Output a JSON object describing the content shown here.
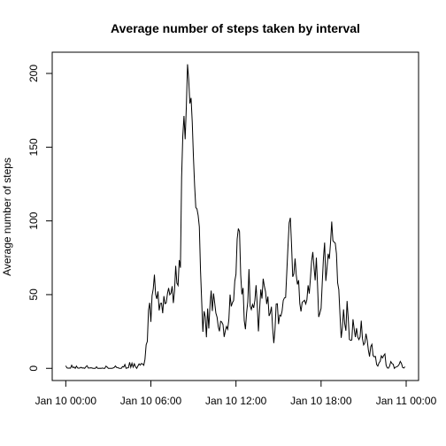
{
  "chart_data": {
    "type": "line",
    "title": "Average number of steps taken by interval",
    "y_label": "Average number of steps",
    "color": "#000000",
    "x": [
      0,
      5,
      10,
      15,
      20,
      25,
      30,
      35,
      40,
      45,
      50,
      55,
      60,
      65,
      70,
      75,
      80,
      85,
      90,
      95,
      100,
      105,
      110,
      115,
      120,
      125,
      130,
      135,
      140,
      145,
      150,
      155,
      160,
      165,
      170,
      175,
      180,
      185,
      190,
      195,
      200,
      205,
      210,
      215,
      220,
      225,
      230,
      235,
      240,
      245,
      250,
      255,
      260,
      265,
      270,
      275,
      280,
      285,
      290,
      295,
      300,
      305,
      310,
      315,
      320,
      325,
      330,
      335,
      340,
      345,
      350,
      355,
      360,
      365,
      370,
      375,
      380,
      385,
      390,
      395,
      400,
      405,
      410,
      415,
      420,
      425,
      430,
      435,
      440,
      445,
      450,
      455,
      460,
      465,
      470,
      475,
      480,
      485,
      490,
      495,
      500,
      505,
      510,
      515,
      520,
      525,
      530,
      535,
      540,
      545,
      550,
      555,
      560,
      565,
      570,
      575,
      580,
      585,
      590,
      595,
      600,
      605,
      610,
      615,
      620,
      625,
      630,
      635,
      640,
      645,
      650,
      655,
      660,
      665,
      670,
      675,
      680,
      685,
      690,
      695,
      700,
      705,
      710,
      715,
      720,
      725,
      730,
      735,
      740,
      745,
      750,
      755,
      760,
      765,
      770,
      775,
      780,
      785,
      790,
      795,
      800,
      805,
      810,
      815,
      820,
      825,
      830,
      835,
      840,
      845,
      850,
      855,
      860,
      865,
      870,
      875,
      880,
      885,
      890,
      895,
      900,
      905,
      910,
      915,
      920,
      925,
      930,
      935,
      940,
      945,
      950,
      955,
      960,
      965,
      970,
      975,
      980,
      985,
      990,
      995,
      1000,
      1005,
      1010,
      1015,
      1020,
      1025,
      1030,
      1035,
      1040,
      1045,
      1050,
      1055,
      1060,
      1065,
      1070,
      1075,
      1080,
      1085,
      1090,
      1095,
      1100,
      1105,
      1110,
      1115,
      1120,
      1125,
      1130,
      1135,
      1140,
      1145,
      1150,
      1155,
      1160,
      1165,
      1170,
      1175,
      1180,
      1185,
      1190,
      1195,
      1200,
      1205,
      1210,
      1215,
      1220,
      1225,
      1230,
      1235,
      1240,
      1245,
      1250,
      1255,
      1260,
      1265,
      1270,
      1275,
      1280,
      1285,
      1290,
      1295,
      1300,
      1305,
      1310,
      1315,
      1320,
      1325,
      1330,
      1335,
      1340,
      1345,
      1350,
      1355,
      1360,
      1365,
      1370,
      1375,
      1380,
      1385,
      1390,
      1395,
      1400,
      1405,
      1410,
      1415,
      1420,
      1425,
      1430,
      1435
    ],
    "values": [
      1.7,
      0.3,
      0.1,
      0.2,
      0.1,
      2.1,
      0.5,
      0.9,
      0,
      1.5,
      0.3,
      0.1,
      0.3,
      0.7,
      0.2,
      0.3,
      0,
      1.1,
      1.8,
      0.2,
      0.2,
      0.4,
      0.3,
      0,
      0,
      0,
      1.1,
      0,
      0,
      0.1,
      0,
      0.2,
      0,
      0,
      1.5,
      0.9,
      0,
      0,
      0,
      0,
      0.2,
      0.6,
      1.6,
      0.6,
      0.5,
      0.1,
      0,
      0,
      1.2,
      0.9,
      2.6,
      0,
      0.3,
      0.4,
      4.1,
      0.7,
      3.5,
      0.8,
      3.1,
      1.1,
      0,
      1.6,
      3,
      2.2,
      3.3,
      3,
      2.1,
      6.1,
      16,
      18.3,
      39.5,
      44.5,
      31.5,
      49.3,
      53.8,
      63.5,
      50.2,
      47.1,
      52.2,
      39.3,
      44,
      44.2,
      37.4,
      49,
      43.8,
      44.4,
      50.5,
      54.5,
      49.9,
      51,
      55.7,
      44.3,
      52.3,
      69.5,
      57.8,
      56.2,
      73.4,
      68.2,
      129.4,
      157.5,
      171.2,
      155.4,
      177.3,
      206.2,
      195.9,
      179.6,
      183.4,
      167,
      143.5,
      124,
      109.1,
      108.1,
      103.7,
      96,
      66.2,
      45.2,
      24.8,
      38.8,
      35,
      21.1,
      40.6,
      27,
      42.4,
      52.7,
      38.9,
      50.8,
      44.3,
      37.4,
      34.7,
      28.3,
      25.1,
      31.9,
      31.4,
      29.7,
      21.3,
      25.5,
      28.4,
      26.5,
      33.4,
      50,
      42,
      44.6,
      46,
      59.2,
      63.9,
      87.7,
      94.8,
      92.8,
      63.4,
      50.2,
      54.5,
      32.4,
      26.5,
      37.7,
      45.1,
      67.3,
      42.3,
      39.9,
      43.3,
      41,
      46.2,
      56.4,
      42.8,
      25.1,
      40,
      53.5,
      47.3,
      60.8,
      55.8,
      52,
      43.6,
      48.7,
      35.5,
      37.5,
      41.8,
      27.5,
      17.1,
      26.1,
      43.6,
      43.8,
      30,
      36.1,
      35.5,
      38.8,
      46,
      47.8,
      48.1,
      65.3,
      82.9,
      98.7,
      102.1,
      84,
      62.1,
      64.1,
      74.5,
      63.2,
      56.9,
      59.8,
      43.9,
      38.6,
      44.7,
      45.5,
      46.2,
      43.7,
      46.6,
      56.3,
      50.7,
      61.2,
      72.7,
      78.9,
      68.9,
      59.7,
      75.1,
      56.5,
      34.8,
      37.5,
      40.7,
      58,
      74.7,
      85.3,
      59.3,
      67.8,
      77.7,
      74.2,
      85.3,
      99.5,
      86.6,
      85.6,
      84.9,
      77.8,
      58,
      53.4,
      36.3,
      20.7,
      27.4,
      40,
      30.2,
      25.5,
      45.7,
      33.5,
      19.6,
      19,
      19.3,
      33.3,
      26.8,
      21.2,
      27.3,
      21.3,
      19.5,
      21.3,
      32.3,
      20.2,
      15.9,
      17.2,
      23.5,
      19.2,
      12.5,
      8,
      14.7,
      16.3,
      8.7,
      7.8,
      8.1,
      2.6,
      1.5,
      3.7,
      4.8,
      8.5,
      7.1,
      8.7,
      9.8,
      2.2,
      0.3,
      0.1,
      1.6,
      4.6,
      3.3,
      2.8,
      0,
      0.8,
      1,
      1.6,
      2.6,
      4.7,
      3.3,
      0.6,
      0.2,
      1.1
    ],
    "xlim": [
      -57.4,
      1492.4
    ],
    "xticks": [
      {
        "value": 0,
        "label": "Jan 10 00:00"
      },
      {
        "value": 360,
        "label": "Jan 10 06:00"
      },
      {
        "value": 720,
        "label": "Jan 10 12:00"
      },
      {
        "value": 1080,
        "label": "Jan 10 18:00"
      },
      {
        "value": 1440,
        "label": "Jan 11 00:00"
      }
    ],
    "ylim": [
      -8.25,
      214.4
    ],
    "yticks": [
      0,
      50,
      100,
      150,
      200
    ]
  }
}
